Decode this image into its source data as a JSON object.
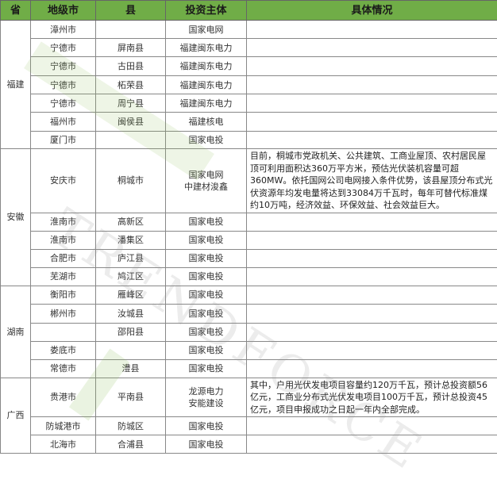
{
  "headers": [
    "省",
    "地级市",
    "县",
    "投资主体",
    "具体情况"
  ],
  "watermark": "TRENDFORCE",
  "colors": {
    "header_bg": "#70ad47"
  },
  "groups": [
    {
      "province": "福建",
      "rows": [
        {
          "city": "漳州市",
          "county": "",
          "investor": "国家电网",
          "detail": ""
        },
        {
          "city": "宁德市",
          "county": "屏南县",
          "investor": "福建闽东电力",
          "detail": ""
        },
        {
          "city": "宁德市",
          "county": "古田县",
          "investor": "福建闽东电力",
          "detail": ""
        },
        {
          "city": "宁德市",
          "county": "柘荣县",
          "investor": "福建闽东电力",
          "detail": ""
        },
        {
          "city": "宁德市",
          "county": "周宁县",
          "investor": "福建闽东电力",
          "detail": ""
        },
        {
          "city": "福州市",
          "county": "闽侯县",
          "investor": "福建核电",
          "detail": ""
        },
        {
          "city": "厦门市",
          "county": "",
          "investor": "国家电投",
          "detail": ""
        }
      ]
    },
    {
      "province": "安徽",
      "rows": [
        {
          "city": "安庆市",
          "county": "桐城市",
          "investor": "国家电网\n中建材浚鑫",
          "detail": "目前，桐城市党政机关、公共建筑、工商业屋顶、农村居民屋顶可利用面积达360万平方米，预估光伏装机容量可超360MW。依托国网公司电网接入条件优势，该县屋顶分布式光伏资源年均发电量将达到33084万千瓦时，每年可替代标准煤约10万吨，经济效益、环保效益、社会效益巨大。"
        },
        {
          "city": "淮南市",
          "county": "高新区",
          "investor": "国家电投",
          "detail": ""
        },
        {
          "city": "淮南市",
          "county": "潘集区",
          "investor": "国家电投",
          "detail": ""
        },
        {
          "city": "合肥市",
          "county": "庐江县",
          "investor": "国家电投",
          "detail": ""
        },
        {
          "city": "芜湖市",
          "county": "鸠江区",
          "investor": "国家电投",
          "detail": ""
        }
      ]
    },
    {
      "province": "湖南",
      "rows": [
        {
          "city": "衡阳市",
          "county": "雁峰区",
          "investor": "国家电投",
          "detail": ""
        },
        {
          "city": "郴州市",
          "county": "汝城县",
          "investor": "国家电投",
          "detail": ""
        },
        {
          "city": "",
          "county": "邵阳县",
          "investor": "国家电投",
          "detail": ""
        },
        {
          "city": "娄底市",
          "county": "",
          "investor": "国家电投",
          "detail": ""
        },
        {
          "city": "常德市",
          "county": "澧县",
          "investor": "国家电投",
          "detail": ""
        }
      ]
    },
    {
      "province": "广西",
      "rows": [
        {
          "city": "贵港市",
          "county": "平南县",
          "investor": "龙源电力\n安能建设",
          "detail": "其中，户用光伏发电项目容量约120万千瓦，预计总投资额56亿元，工商业分布式光伏发电项目100万千瓦，预计总投资45亿元，项目申报成功之日起一年内全部完成。"
        },
        {
          "city": "防城港市",
          "county": "防城区",
          "investor": "国家电投",
          "detail": ""
        },
        {
          "city": "北海市",
          "county": "合浦县",
          "investor": "国家电投",
          "detail": ""
        }
      ]
    }
  ]
}
